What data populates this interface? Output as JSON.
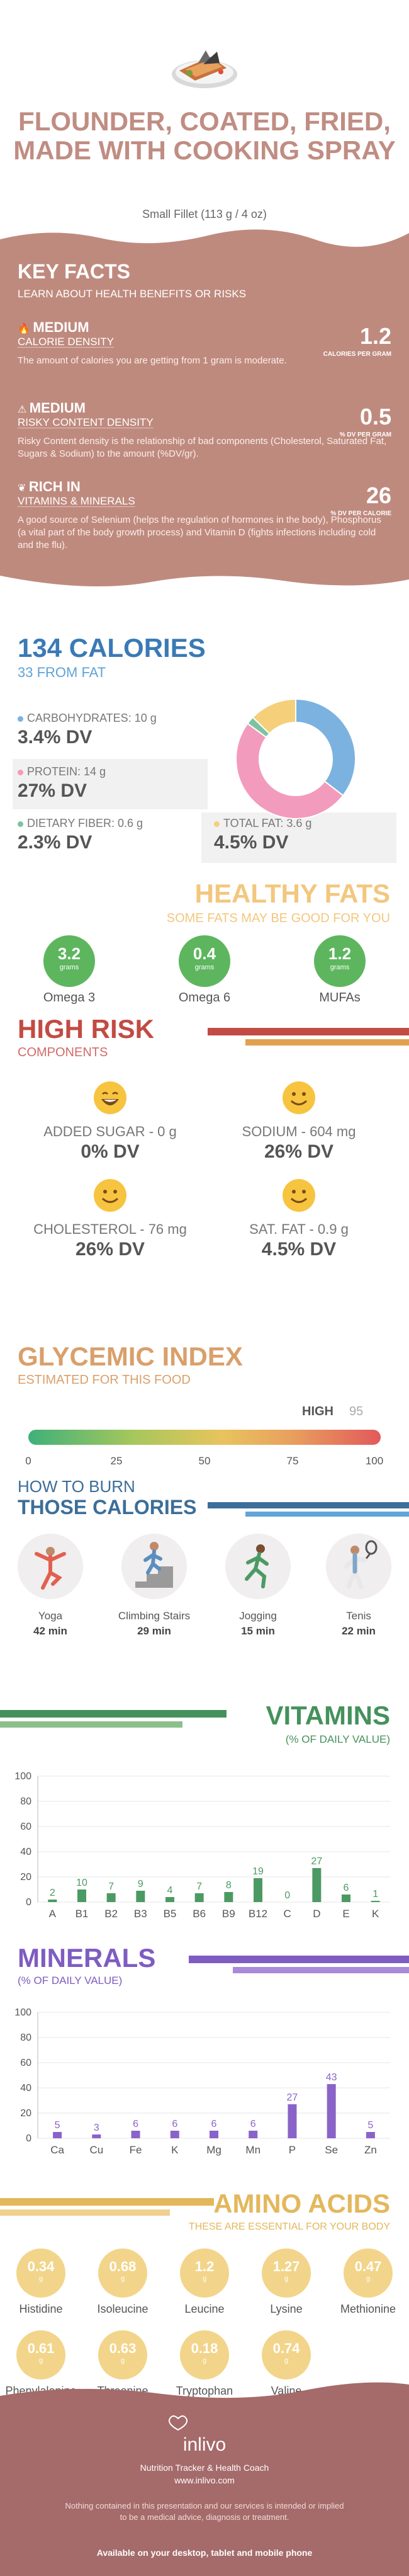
{
  "header": {
    "title": "FLOUNDER, COATED, FRIED, MADE WITH COOKING SPRAY",
    "serving": "Small Fillet (113 g / 4 oz)"
  },
  "key_facts": {
    "title": "KEY FACTS",
    "subtitle": "LEARN ABOUT HEALTH BENEFITS OR RISKS",
    "items": [
      {
        "badge": "MEDIUM",
        "label": "CALORIE DENSITY",
        "value": "1.2",
        "unit": "CALORIES PER GRAM",
        "desc": "The amount of calories you are getting from 1 gram is moderate."
      },
      {
        "badge": "MEDIUM",
        "label": "RISKY CONTENT DENSITY",
        "value": "0.5",
        "unit": "% DV PER GRAM",
        "desc": "Risky Content density is the relationship of bad components (Cholesterol, Saturated Fat, Sugars & Sodium) to the amount (%DV/gr)."
      },
      {
        "badge": "RICH  IN",
        "label": "VITAMINS & MINERALS",
        "value": "26",
        "unit": "% DV PER CALORIE",
        "desc": "A good source of Selenium (helps the regulation of hormones in the body), Phosphorus (a vital part of the body growth process) and Vitamin D (fights infections including cold and the flu)."
      }
    ]
  },
  "calories": {
    "title": "134 CALORIES",
    "subtitle": "33 FROM FAT",
    "macros": [
      {
        "label": "CARBOHYDRATES: 10 g",
        "dv": "3.4% DV",
        "color": "#7bb2e0"
      },
      {
        "label": "PROTEIN: 14 g",
        "dv": "27% DV",
        "color": "#f39bbd"
      },
      {
        "label": "DIETARY FIBER: 0.6 g",
        "dv": "2.3% DV",
        "color": "#7dc3a2"
      },
      {
        "label": "TOTAL FAT: 3.6 g",
        "dv": "4.5% DV",
        "color": "#f5cf7a"
      }
    ]
  },
  "healthy_fats": {
    "title": "HEALTHY FATS",
    "subtitle": "SOME FATS MAY BE GOOD FOR YOU",
    "items": [
      {
        "value": "3.2",
        "unit": "grams",
        "name": "Omega 3"
      },
      {
        "value": "0.4",
        "unit": "grams",
        "name": "Omega 6"
      },
      {
        "value": "1.2",
        "unit": "grams",
        "name": "MUFAs"
      }
    ]
  },
  "high_risk": {
    "title": "HIGH RISK",
    "subtitle": "COMPONENTS",
    "items": [
      {
        "label": "ADDED SUGAR - 0 g",
        "dv": "0% DV",
        "face": "laugh"
      },
      {
        "label": "SODIUM - 604 mg",
        "dv": "26% DV",
        "face": "smile"
      },
      {
        "label": "CHOLESTEROL - 76 mg",
        "dv": "26% DV",
        "face": "smile"
      },
      {
        "label": "SAT. FAT - 0.9 g",
        "dv": "4.5% DV",
        "face": "smile"
      }
    ]
  },
  "glycemic": {
    "title": "GLYCEMIC INDEX",
    "subtitle": "ESTIMATED FOR THIS FOOD",
    "level": "HIGH",
    "value": "95",
    "ticks": [
      "0",
      "25",
      "50",
      "75",
      "100"
    ]
  },
  "burn": {
    "title_line1": "HOW TO BURN",
    "title_line2": "THOSE CALORIES",
    "activities": [
      {
        "name": "Yoga",
        "minutes": "42 min",
        "icon": "yoga-icon"
      },
      {
        "name": "Climbing Stairs",
        "minutes": "29 min",
        "icon": "stairs-icon"
      },
      {
        "name": "Jogging",
        "minutes": "15 min",
        "icon": "jogging-icon"
      },
      {
        "name": "Tenis",
        "minutes": "22 min",
        "icon": "tennis-icon"
      }
    ]
  },
  "vitamins": {
    "title": "VITAMINS",
    "subtitle": "(% OF DAILY VALUE)"
  },
  "minerals": {
    "title": "MINERALS",
    "subtitle": "(% OF DAILY VALUE)"
  },
  "amino": {
    "title": "AMINO ACIDS",
    "subtitle": "THESE ARE ESSENTIAL FOR YOUR BODY",
    "items": [
      {
        "value": "0.34",
        "unit": "g",
        "name": "Histidine"
      },
      {
        "value": "0.68",
        "unit": "g",
        "name": "Isoleucine"
      },
      {
        "value": "1.2",
        "unit": "g",
        "name": "Leucine"
      },
      {
        "value": "1.27",
        "unit": "g",
        "name": "Lysine"
      },
      {
        "value": "0.47",
        "unit": "g",
        "name": "Methionine"
      },
      {
        "value": "0.61",
        "unit": "g",
        "name": "Phenylalanine"
      },
      {
        "value": "0.63",
        "unit": "g",
        "name": "Threonine"
      },
      {
        "value": "0.18",
        "unit": "g",
        "name": "Tryptophan"
      },
      {
        "value": "0.74",
        "unit": "g",
        "name": "Valine"
      }
    ]
  },
  "footer": {
    "brand": "inlivo",
    "tagline": "Nutrition Tracker & Health Coach",
    "url": "www.inlivo.com",
    "disclaimer": "Nothing contained in this presentation and our services is intended or implied to be a medical advice, diagnosis or treatment.",
    "available": "Available on your desktop, tablet and mobile phone"
  },
  "chart_data": [
    {
      "type": "pie",
      "categories": [
        "CARBOHYDRATES",
        "PROTEIN",
        "DIETARY FIBER",
        "TOTAL FAT"
      ],
      "values": [
        10,
        14,
        0.6,
        3.6
      ],
      "colors": [
        "#7bb2e0",
        "#f39bbd",
        "#7dc3a2",
        "#f5cf7a"
      ]
    },
    {
      "type": "bar",
      "categories": [
        "A",
        "B1",
        "B2",
        "B3",
        "B5",
        "B6",
        "B9",
        "B12",
        "C",
        "D",
        "E",
        "K"
      ],
      "values": [
        2,
        10,
        7,
        9,
        4,
        7,
        8,
        19,
        0,
        27,
        6,
        1
      ],
      "ylim": [
        0,
        100
      ],
      "yticks": [
        0,
        20,
        40,
        60,
        80,
        100
      ],
      "color": "#4c9a63"
    },
    {
      "type": "bar",
      "categories": [
        "Ca",
        "Cu",
        "Fe",
        "K",
        "Mg",
        "Mn",
        "P",
        "Se",
        "Zn"
      ],
      "values": [
        5,
        3,
        6,
        6,
        6,
        6,
        27,
        43,
        5
      ],
      "ylim": [
        0,
        100
      ],
      "yticks": [
        0,
        20,
        40,
        60,
        80,
        100
      ],
      "color": "#8a63c8"
    }
  ]
}
